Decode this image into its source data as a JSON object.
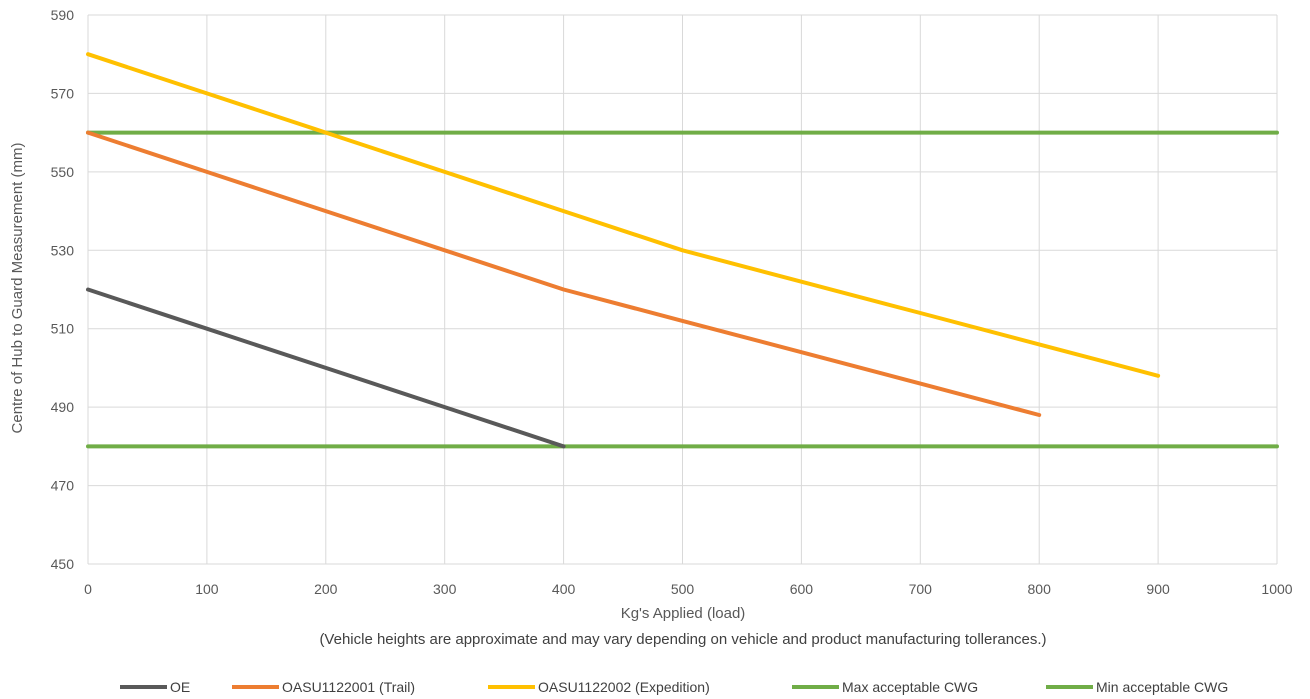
{
  "chart_data": {
    "type": "line",
    "xlabel": "Kg's Applied (load)",
    "ylabel": "Centre of Hub to Guard Measurement (mm)",
    "note": "(Vehicle heights are approximate and may vary depending on vehicle and product manufacturing tollerances.)",
    "xlim": [
      0,
      1000
    ],
    "ylim": [
      450,
      590
    ],
    "x_ticks": [
      "0",
      "100",
      "200",
      "300",
      "400",
      "500",
      "600",
      "700",
      "800",
      "900",
      "1000"
    ],
    "y_ticks": [
      "450",
      "470",
      "490",
      "510",
      "530",
      "550",
      "570",
      "590"
    ],
    "grid": true,
    "legend_position": "bottom",
    "series": [
      {
        "name": "OE",
        "color": "#595959",
        "points": [
          [
            0,
            520
          ],
          [
            100,
            510
          ],
          [
            200,
            500
          ],
          [
            300,
            490
          ],
          [
            400,
            480
          ]
        ]
      },
      {
        "name": "OASU1122001 (Trail)",
        "color": "#ED7D31",
        "points": [
          [
            0,
            560
          ],
          [
            100,
            550
          ],
          [
            200,
            540
          ],
          [
            300,
            530
          ],
          [
            400,
            520
          ],
          [
            500,
            512
          ],
          [
            600,
            504
          ],
          [
            700,
            496
          ],
          [
            800,
            488
          ]
        ]
      },
      {
        "name": "OASU1122002 (Expedition)",
        "color": "#FFC000",
        "points": [
          [
            0,
            580
          ],
          [
            100,
            570
          ],
          [
            200,
            560
          ],
          [
            300,
            550
          ],
          [
            400,
            540
          ],
          [
            500,
            530
          ],
          [
            600,
            522
          ],
          [
            700,
            514
          ],
          [
            800,
            506
          ],
          [
            900,
            498
          ]
        ]
      },
      {
        "name": "Max acceptable CWG",
        "color": "#70AD47",
        "points": [
          [
            0,
            560
          ],
          [
            1000,
            560
          ]
        ]
      },
      {
        "name": "Min acceptable CWG",
        "color": "#70AD47",
        "points": [
          [
            0,
            480
          ],
          [
            1000,
            480
          ]
        ]
      }
    ]
  }
}
